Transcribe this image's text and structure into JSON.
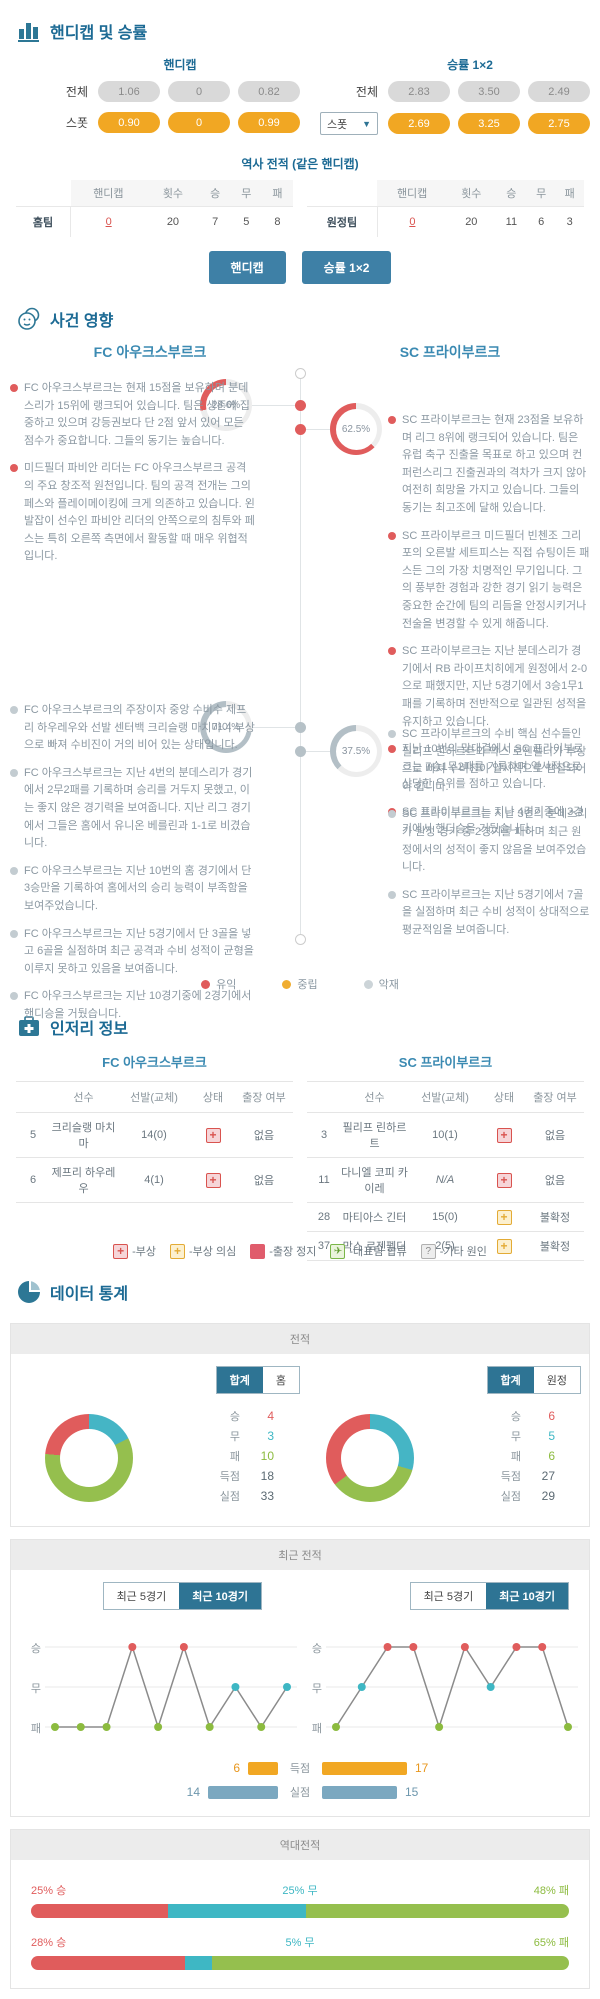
{
  "odds": {
    "title": "핸디캡 및 승률",
    "handicap": {
      "label": "핸디캡",
      "total_label": "전체",
      "spot_label": "스폿",
      "total": [
        "1.06",
        "0",
        "0.82"
      ],
      "spot": [
        "0.90",
        "0",
        "0.99"
      ]
    },
    "winrate": {
      "label": "승률 1×2",
      "total_label": "전체",
      "spot_label": "스폿",
      "total": [
        "2.83",
        "3.50",
        "2.49"
      ],
      "spot": [
        "2.69",
        "3.25",
        "2.75"
      ]
    },
    "history": {
      "title": "역사 전적 (같은 핸디캡)",
      "headers": {
        "handicap": "핸디캡",
        "count": "횟수",
        "win": "승",
        "draw": "무",
        "lose": "패"
      },
      "home": {
        "label": "홈팀",
        "handicap": "0",
        "count": "20",
        "win": "7",
        "draw": "5",
        "lose": "8"
      },
      "away": {
        "label": "원정팀",
        "handicap": "0",
        "count": "20",
        "win": "11",
        "draw": "6",
        "lose": "3"
      }
    },
    "buttons": {
      "handicap": "핸디캡",
      "winrate": "승률 1×2"
    }
  },
  "events": {
    "title": "사건 영향",
    "home_team": "FC 아우크스부르크",
    "away_team": "SC 프라이부르크",
    "pct": {
      "home_top": "28.6%",
      "away_top": "62.5%",
      "home_bottom": "71.4%",
      "away_bottom": "37.5%"
    },
    "home_good": [
      "FC 아우크스부르크는 현재 15점을 보유하며 분데스리가 15위에 랭크되어 있습니다. 팀은 생존에 집중하고 있으며 강등권보다 단 2점 앞서 있어 모든 점수가 중요합니다. 그들의 동기는 높습니다.",
      "미드필더 파비안 리더는 FC 아우크스부르크 공격의 주요 창조적 원천입니다. 팀의 공격 전개는 그의 페스와 플레이메이킹에 크게 의존하고 있습니다. 왼발잡이 선수인 파비안 리더의 안쪽으로의 침투와 페스는 특히 오른쪽 측면에서 활동할 때 매우 위협적입니다."
    ],
    "home_bad": [
      "FC 아우크스부르크의 주장이자 중앙 수비수 제프리 하우레우와 선발 센터백 크리슬랭 마치마이 부상으로 빠져 수비진이 거의 비어 있는 상태입니다.",
      "FC 아우크스부르크는 지난 4번의 분데스리가 경기에서 2무2패를 기록하며 승리를 거두지 못했고, 이는 좋지 않은 경기력을 보여줍니다. 지난 리그 경기에서 그들은 홈에서 유니온 베를린과 1-1로 비겼습니다.",
      "FC 아우크스부르크는 지난 10번의 홈 경기에서 단 3승만을 기록하여 홈에서의 승리 능력이 부족함을 보여주었습니다.",
      "FC 아우크스부르크는 지난 5경기에서 단 3골을 넣고 6골을 실점하며 최근 공격과 수비 성적이 균형을 이루지 못하고 있음을 보여줍니다.",
      "FC 아우크스부르크는 지난 10경기중에 2경기에서 핸디승을 거뒀습니다."
    ],
    "away_good": [
      "SC 프라이부르크는 현재 23점을 보유하며 리그 8위에 랭크되어 있습니다. 팀은 유럽 축구 진출을 목표로 하고 있으며 컨퍼런스리그 진출권과의 격차가 크지 않아 여전히 희망을 가지고 있습니다. 그들의 동기는 최고조에 달해 있습니다.",
      "SC 프라이부르크 미드필더 빈첸조 그리포의 오른발 세트피스는 직접 슈팅이든 패스든 그의 가장 치명적인 무기입니다. 그의 풍부한 경험과 강한 경기 읽기 능력은 중요한 순간에 팀의 리듬을 안정시키거나 전술을 변경할 수 있게 해줍니다.",
      "SC 프라이부르크는 지난 분데스리가 경기에서 RB 라이프치히에게 원정에서 2-0으로 패했지만, 지난 5경기에서 3승1무1패를 기록하며 전반적으로 일관된 성적을 유지하고 있습니다.",
      "지난 10번의 맞대결에서 SC 프라이부르크는 7승1무2패를 기록하며 역사적으로 상당한 우위를 점하고 있습니다.",
      "SC 프라이부르크는 지난 4경기중에 3경기에서 핸디승을 거뒀습니다."
    ],
    "away_bad": [
      "SC 프라이부르크의 수비 핵심 선수들인 필리프 린하르트와 막스 로젠펠더가 부상으로 빠져 수비진이 일시적으로 땜질되어야 합니다.",
      "SC 프라이부르크는 지난 3번의 분데스리가 원정 경기 중 2경기를 패하며 최근 원정에서의 성적이 좋지 않음을 보여주었습니다.",
      "SC 프라이부르크는 지난 5경기에서 7골을 실점하며 최근 수비 성적이 상대적으로 평균적임을 보여줍니다."
    ],
    "legend": {
      "good": "유익",
      "neutral": "중립",
      "bad": "악재"
    }
  },
  "injury": {
    "title": "인저리 정보",
    "home_team": "FC 아우크스부르크",
    "away_team": "SC 프라이부르크",
    "headers": {
      "player": "선수",
      "starts": "선발(교체)",
      "status": "상태",
      "avail": "출장 여부"
    },
    "home_rows": [
      {
        "no": "5",
        "name": "크리슬랭 마치마",
        "starts": "14(0)",
        "status": "injury",
        "avail": "없음"
      },
      {
        "no": "6",
        "name": "제프리 하우레우",
        "starts": "4(1)",
        "status": "injury",
        "avail": "없음"
      }
    ],
    "away_rows": [
      {
        "no": "3",
        "name": "필리프 린하르트",
        "starts": "10(1)",
        "status": "injury",
        "avail": "없음"
      },
      {
        "no": "11",
        "name": "다니엘 코피 카이레",
        "starts": "N/A",
        "status": "injury",
        "avail": "없음"
      },
      {
        "no": "28",
        "name": "마티아스 긴터",
        "starts": "15(0)",
        "status": "doubt",
        "avail": "불확정"
      },
      {
        "no": "37",
        "name": "막스 로젠펠더",
        "starts": "2(5)",
        "status": "doubt",
        "avail": "불확정"
      }
    ],
    "legend": {
      "injury": "-부상",
      "doubt": "-부상 의심",
      "suspended": "-출장 정지",
      "national": "-대표팀 합류",
      "other": "-기타 원인"
    }
  },
  "stats": {
    "title": "데이터 통계",
    "record": {
      "header": "전적",
      "home": {
        "toggle": [
          "합계",
          "홈"
        ],
        "rows": [
          {
            "label": "승",
            "value": "4"
          },
          {
            "label": "무",
            "value": "3"
          },
          {
            "label": "패",
            "value": "10"
          },
          {
            "label": "득점",
            "value": "18"
          },
          {
            "label": "실점",
            "value": "33"
          }
        ]
      },
      "away": {
        "toggle": [
          "합계",
          "원정"
        ],
        "rows": [
          {
            "label": "승",
            "value": "6"
          },
          {
            "label": "무",
            "value": "5"
          },
          {
            "label": "패",
            "value": "6"
          },
          {
            "label": "득점",
            "value": "27"
          },
          {
            "label": "실점",
            "value": "29"
          }
        ]
      }
    },
    "recent": {
      "header": "최근 전적",
      "toggle": [
        "최근 5경기",
        "최근 10경기"
      ],
      "ylabels": {
        "win": "승",
        "draw": "무",
        "lose": "패"
      },
      "goals_for_label": "득점",
      "goals_against_label": "실점",
      "home_goals_for": "6",
      "home_goals_against": "14",
      "away_goals_for": "17",
      "away_goals_against": "15"
    },
    "h2h": {
      "header": "역대전적",
      "rows": [
        {
          "win_label": "25% 승",
          "draw_label": "25% 무",
          "lose_label": "48% 패"
        },
        {
          "win_label": "28% 승",
          "draw_label": "5% 무",
          "lose_label": "65% 패"
        }
      ]
    }
  },
  "chart_data": [
    {
      "id": "event_home_top",
      "type": "donut",
      "value_pct": 28.6,
      "color": "#e05c5c"
    },
    {
      "id": "event_away_top",
      "type": "donut",
      "value_pct": 62.5,
      "color": "#e05c5c"
    },
    {
      "id": "event_home_bottom",
      "type": "donut",
      "value_pct": 71.4,
      "color": "#b3bfc6"
    },
    {
      "id": "event_away_bottom",
      "type": "donut",
      "value_pct": 37.5,
      "color": "#b3bfc6"
    },
    {
      "id": "record_home",
      "type": "pie",
      "labels": [
        "승",
        "무",
        "패"
      ],
      "values": [
        4,
        3,
        10
      ],
      "colors": [
        "#e05c5c",
        "#45b5c5",
        "#95bf4e"
      ],
      "goals_for": 18,
      "goals_against": 33
    },
    {
      "id": "record_away",
      "type": "pie",
      "labels": [
        "승",
        "무",
        "패"
      ],
      "values": [
        6,
        5,
        6
      ],
      "colors": [
        "#e05c5c",
        "#45b5c5",
        "#95bf4e"
      ],
      "goals_for": 27,
      "goals_against": 29
    },
    {
      "id": "recent_home",
      "type": "line",
      "ylabels": [
        "승",
        "무",
        "패"
      ],
      "results": [
        "L",
        "L",
        "L",
        "W",
        "L",
        "W",
        "L",
        "D",
        "L",
        "D"
      ]
    },
    {
      "id": "recent_away",
      "type": "line",
      "ylabels": [
        "승",
        "무",
        "패"
      ],
      "results": [
        "L",
        "D",
        "W",
        "W",
        "L",
        "W",
        "D",
        "W",
        "W",
        "L"
      ]
    },
    {
      "id": "goals_home",
      "type": "bar",
      "labels": [
        "득점",
        "실점"
      ],
      "values": [
        6,
        14
      ]
    },
    {
      "id": "goals_away",
      "type": "bar",
      "labels": [
        "득점",
        "실점"
      ],
      "values": [
        17,
        15
      ]
    },
    {
      "id": "h2h_home",
      "type": "stacked_bar",
      "labels": [
        "승",
        "무",
        "패"
      ],
      "values_pct": [
        25,
        25,
        48
      ]
    },
    {
      "id": "h2h_away",
      "type": "stacked_bar",
      "labels": [
        "승",
        "무",
        "패"
      ],
      "values_pct": [
        28,
        5,
        65
      ]
    }
  ]
}
